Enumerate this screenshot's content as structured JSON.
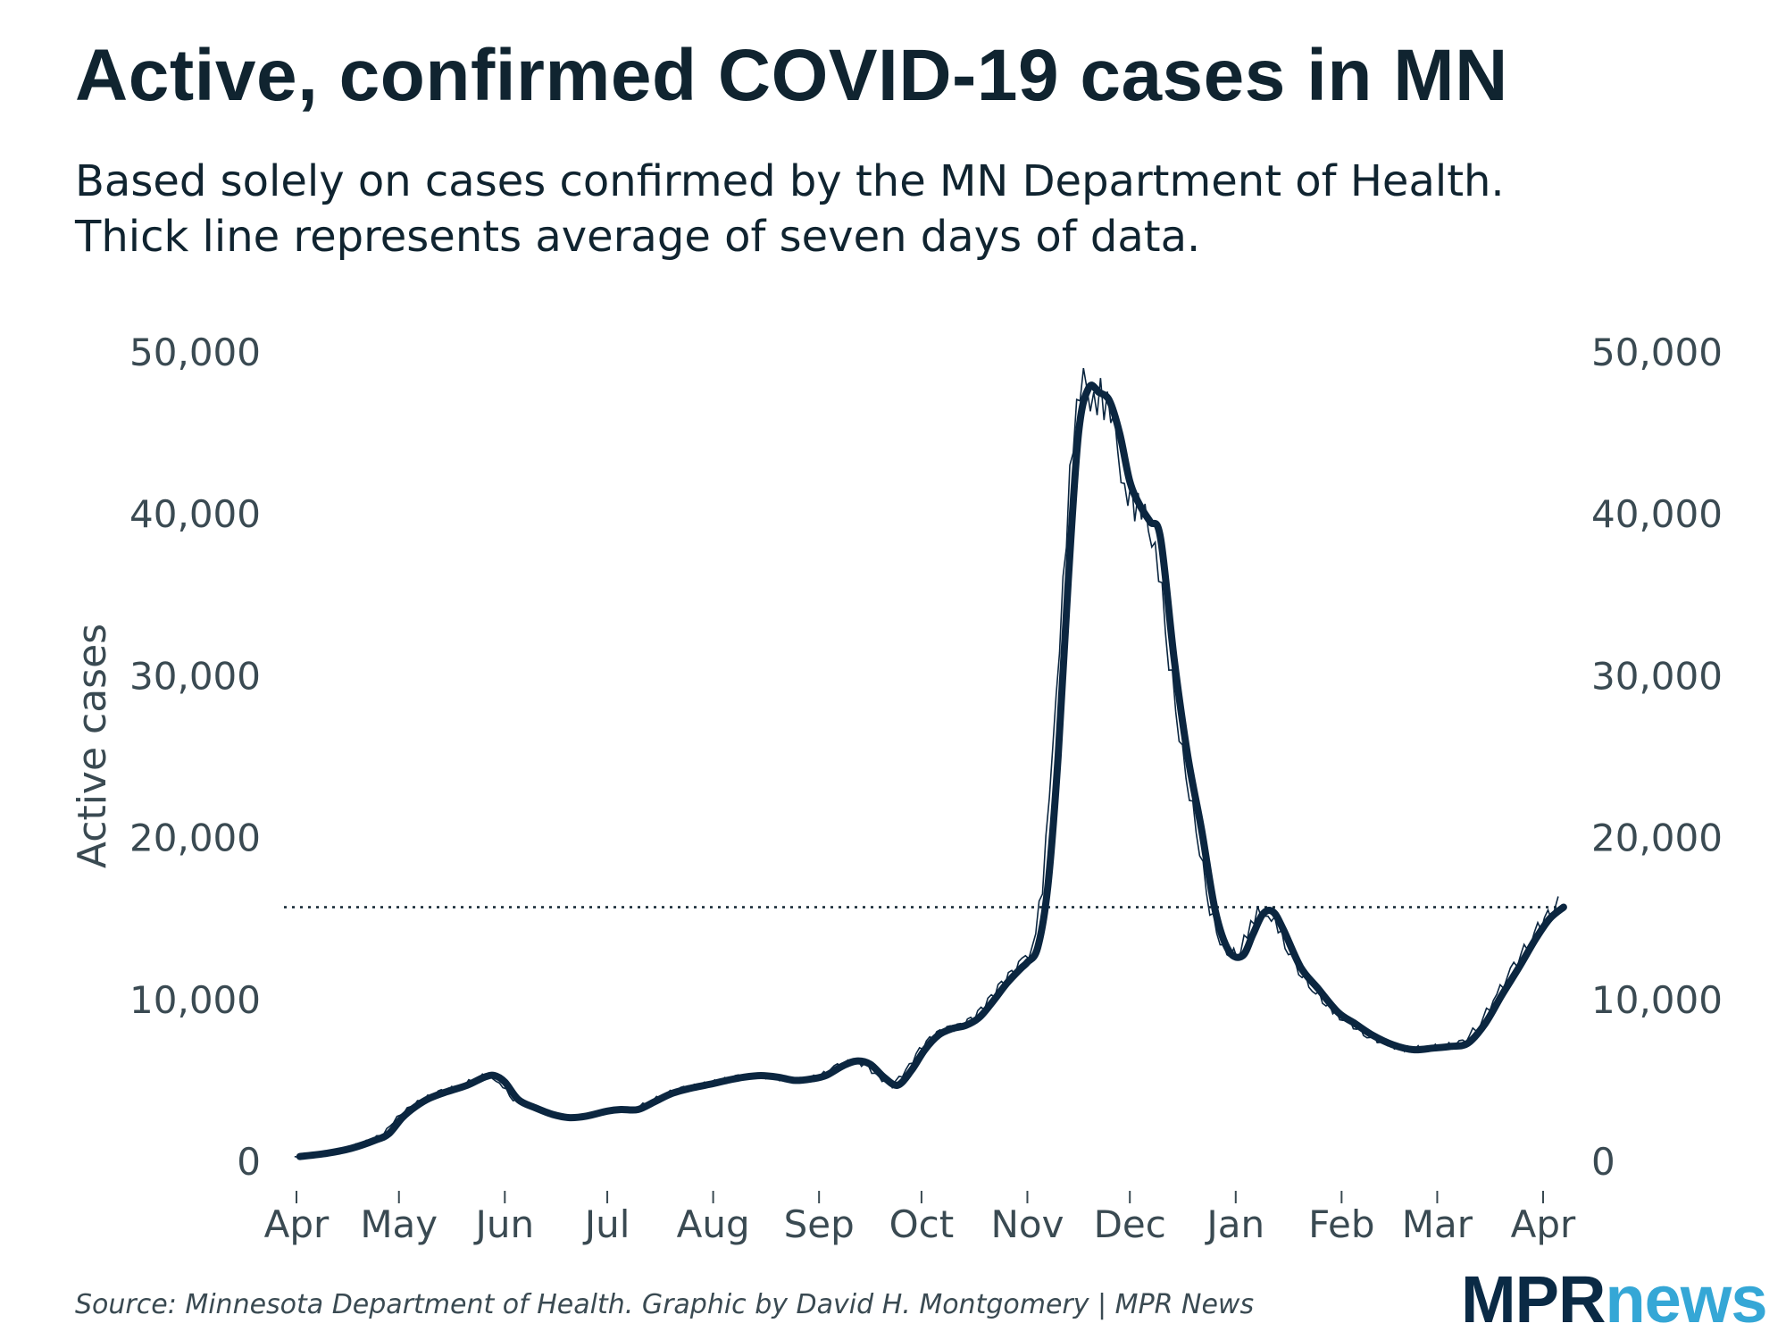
{
  "header": {
    "title": "Active, confirmed COVID-19 cases in MN",
    "subtitle_line1": "Based solely on cases confirmed by the MN Department of Health.",
    "subtitle_line2": "Thick line represents average of seven days of data."
  },
  "footer": {
    "source": "Source: Minnesota Department of Health. Graphic by David H. Montgomery | MPR News",
    "logo_mpr": "MPR",
    "logo_news": "news"
  },
  "colors": {
    "line": "#0b2640",
    "text": "#102430",
    "axis_text": "#3a4a52",
    "logo_dark": "#0a2a45",
    "logo_light": "#35a7d6"
  },
  "chart_data": {
    "type": "line",
    "title": "Active, confirmed COVID-19 cases in MN",
    "ylabel": "Active cases",
    "xlabel": "",
    "ylim": [
      0,
      50000
    ],
    "y_ticks": [
      0,
      10000,
      20000,
      30000,
      40000,
      50000
    ],
    "y_tick_labels": [
      "0",
      "10,000",
      "20,000",
      "30,000",
      "40,000",
      "50,000"
    ],
    "x_tick_labels": [
      "Apr",
      "May",
      "Jun",
      "Jul",
      "Aug",
      "Sep",
      "Oct",
      "Nov",
      "Dec",
      "Jan",
      "Feb",
      "Mar",
      "Apr"
    ],
    "x_tick_dates": [
      "2020-04-01",
      "2020-05-01",
      "2020-06-01",
      "2020-07-01",
      "2020-08-01",
      "2020-09-01",
      "2020-10-01",
      "2020-11-01",
      "2020-12-01",
      "2021-01-01",
      "2021-02-01",
      "2021-03-01",
      "2021-04-01"
    ],
    "grid": false,
    "reference_line": 15700,
    "series": [
      {
        "x": [
          "2020-04-02",
          "2020-04-10",
          "2020-04-17",
          "2020-04-24",
          "2020-04-28",
          "2020-05-02",
          "2020-05-06",
          "2020-05-10",
          "2020-05-15",
          "2020-05-21",
          "2020-05-26",
          "2020-05-29",
          "2020-06-01",
          "2020-06-05",
          "2020-06-10",
          "2020-06-15",
          "2020-06-20",
          "2020-06-25",
          "2020-07-01",
          "2020-07-05",
          "2020-07-10",
          "2020-07-15",
          "2020-07-20",
          "2020-07-25",
          "2020-08-01",
          "2020-08-05",
          "2020-08-10",
          "2020-08-15",
          "2020-08-20",
          "2020-08-25",
          "2020-08-30",
          "2020-09-03",
          "2020-09-08",
          "2020-09-12",
          "2020-09-16",
          "2020-09-20",
          "2020-09-24",
          "2020-09-28",
          "2020-10-02",
          "2020-10-06",
          "2020-10-10",
          "2020-10-14",
          "2020-10-18",
          "2020-10-22",
          "2020-10-26",
          "2020-10-30",
          "2020-11-01",
          "2020-11-04",
          "2020-11-07",
          "2020-11-10",
          "2020-11-13",
          "2020-11-16",
          "2020-11-19",
          "2020-11-22",
          "2020-11-25",
          "2020-11-28",
          "2020-12-01",
          "2020-12-04",
          "2020-12-07",
          "2020-12-10",
          "2020-12-14",
          "2020-12-18",
          "2020-12-22",
          "2020-12-26",
          "2020-12-30",
          "2021-01-03",
          "2021-01-06",
          "2021-01-09",
          "2021-01-12",
          "2021-01-15",
          "2021-01-20",
          "2021-01-25",
          "2021-01-31",
          "2021-02-05",
          "2021-02-10",
          "2021-02-16",
          "2021-02-22",
          "2021-02-28",
          "2021-03-05",
          "2021-03-10",
          "2021-03-15",
          "2021-03-20",
          "2021-03-25",
          "2021-03-30",
          "2021-04-03",
          "2021-04-07"
        ],
        "values": [
          300,
          500,
          800,
          1300,
          1700,
          2700,
          3400,
          3900,
          4300,
          4700,
          5200,
          5300,
          4900,
          3800,
          3300,
          2900,
          2700,
          2800,
          3100,
          3200,
          3200,
          3700,
          4200,
          4500,
          4800,
          5000,
          5200,
          5300,
          5200,
          5000,
          5100,
          5300,
          5900,
          6200,
          6000,
          5200,
          4700,
          5600,
          6900,
          7800,
          8200,
          8400,
          8900,
          9900,
          11000,
          11900,
          12300,
          13200,
          17000,
          25000,
          36000,
          45000,
          47800,
          47500,
          47000,
          45000,
          42000,
          40500,
          39500,
          38500,
          31000,
          25000,
          20500,
          15500,
          13000,
          12700,
          14000,
          15300,
          15400,
          14300,
          12000,
          10700,
          9200,
          8500,
          7800,
          7200,
          6900,
          7000,
          7100,
          7300,
          8500,
          10300,
          12000,
          13800,
          15000,
          15700
        ]
      }
    ]
  }
}
